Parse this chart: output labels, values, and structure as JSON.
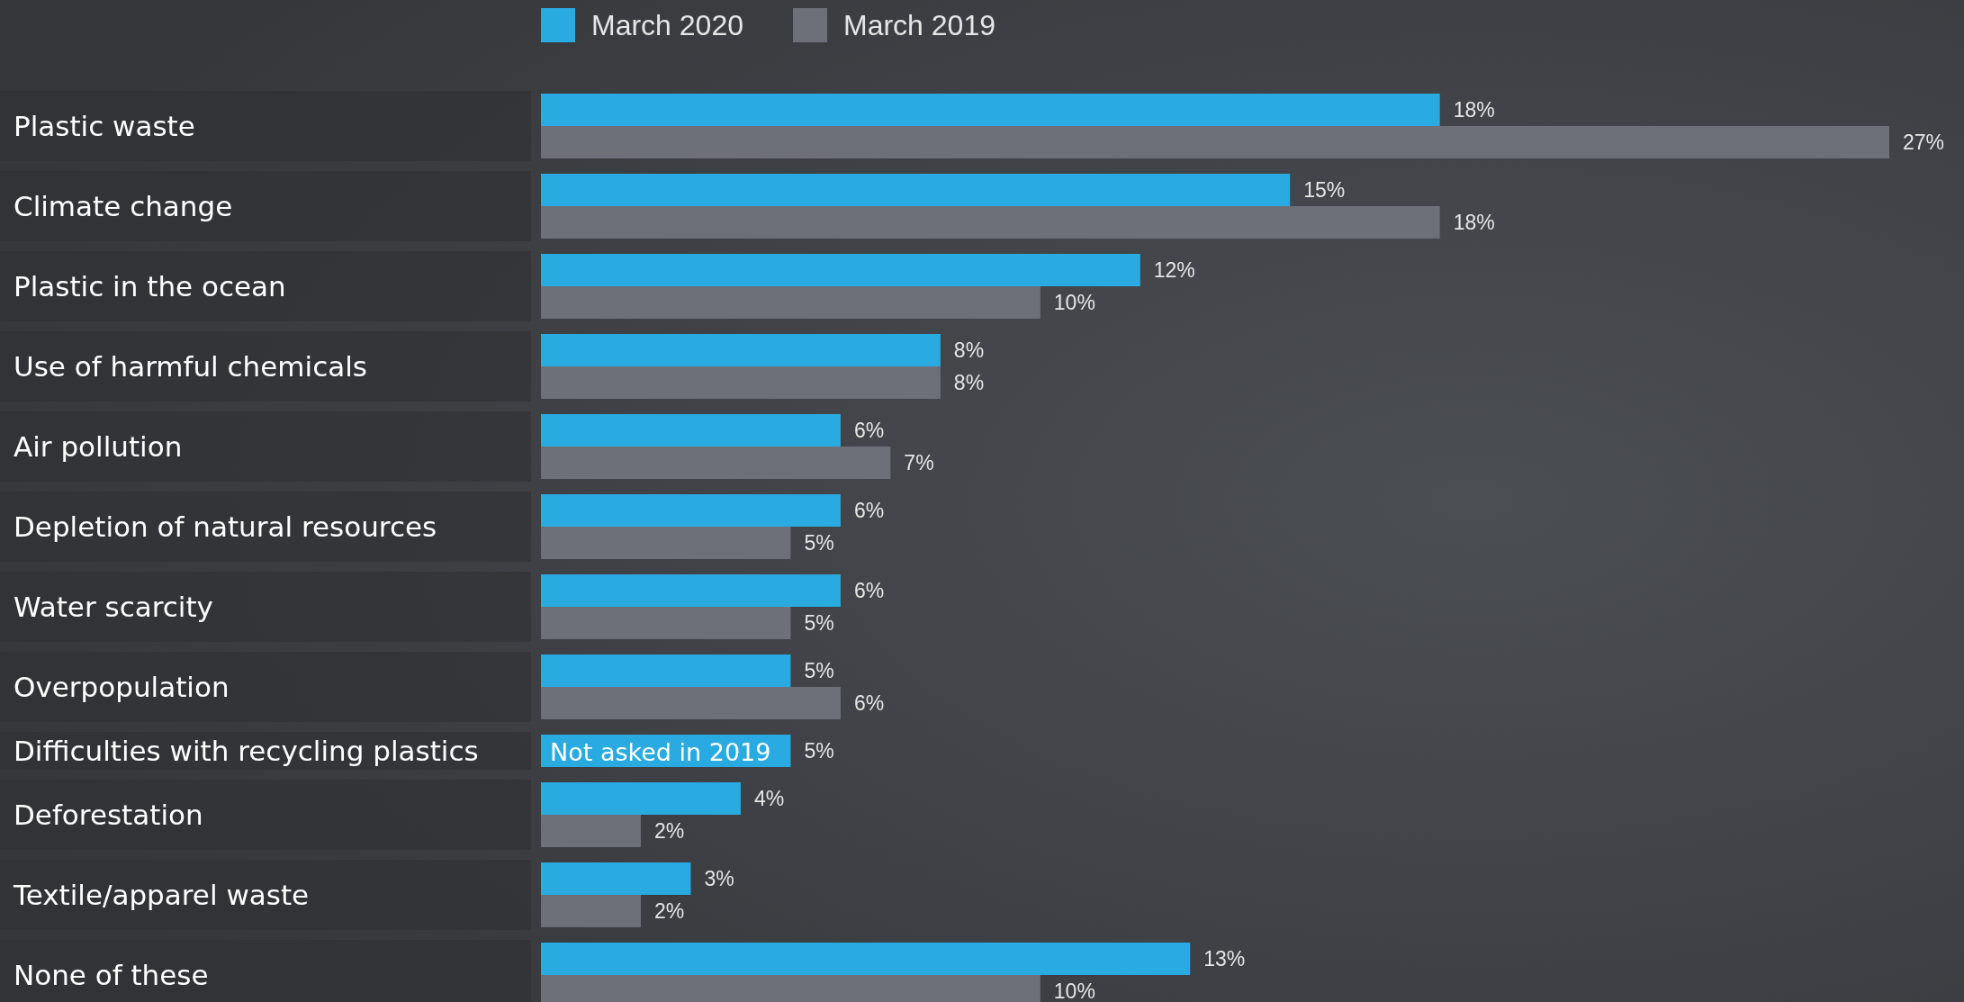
{
  "chart_data": {
    "type": "bar",
    "orientation": "horizontal",
    "legend": "top left",
    "categories": [
      "Plastic waste",
      "Climate change",
      "Plastic in the ocean",
      "Use of harmful chemicals",
      "Air pollution",
      "Depletion of natural resources",
      "Water scarcity",
      "Overpopulation",
      "Difficulties with recycling plastics",
      "Deforestation",
      "Textile/apparel waste",
      "None of these"
    ],
    "series": [
      {
        "name": "March 2020",
        "color": "#29abe2",
        "values": [
          18,
          15,
          12,
          8,
          6,
          6,
          6,
          5,
          5,
          4,
          3,
          13
        ],
        "value_labels": [
          "18%",
          "15%",
          "12%",
          "8%",
          "6%",
          "6%",
          "6%",
          "5%",
          "5%",
          "4%",
          "3%",
          "13%"
        ]
      },
      {
        "name": "March 2019",
        "color": "#6e7079",
        "values": [
          27,
          18,
          10,
          8,
          7,
          5,
          5,
          6,
          null,
          2,
          2,
          10
        ],
        "value_labels": [
          "27%",
          "18%",
          "10%",
          "8%",
          "7%",
          "5%",
          "5%",
          "6%",
          null,
          "2%",
          "2%",
          "10%"
        ]
      }
    ],
    "annotations": [
      {
        "text": "Not asked in 2019",
        "x": 0,
        "y": "Difficulties with recycling plastics"
      }
    ]
  }
}
